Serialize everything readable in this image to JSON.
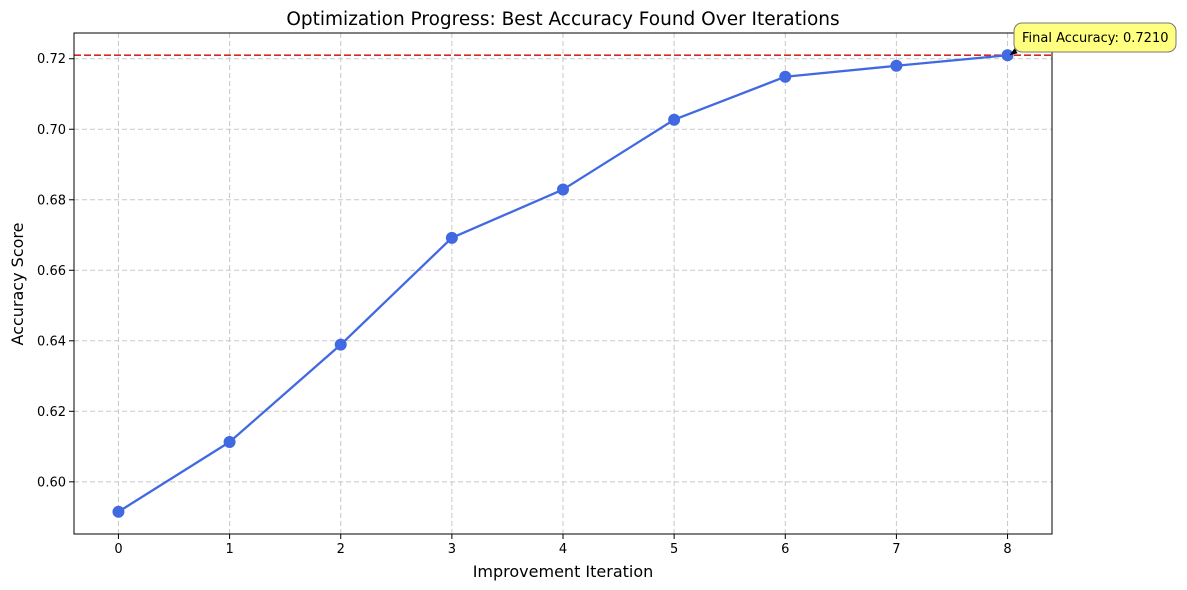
{
  "chart_data": {
    "type": "line",
    "title": "Optimization Progress: Best Accuracy Found Over Iterations",
    "xlabel": "Improvement Iteration",
    "ylabel": "Accuracy Score",
    "x": [
      0,
      1,
      2,
      3,
      4,
      5,
      6,
      7,
      8
    ],
    "series": [
      {
        "values": [
          0.5915,
          0.6113,
          0.6389,
          0.6692,
          0.6829,
          0.7027,
          0.7149,
          0.718,
          0.721
        ],
        "color": "#4169e1"
      }
    ],
    "xticks": [
      0,
      1,
      2,
      3,
      4,
      5,
      6,
      7,
      8
    ],
    "yticks": [
      0.6,
      0.62,
      0.64,
      0.66,
      0.68,
      0.7,
      0.72
    ],
    "xlim": [
      -0.4,
      8.4
    ],
    "ylim": [
      0.5852,
      0.7273
    ],
    "grid": true,
    "reference_line": {
      "y": 0.721,
      "color": "#d62728",
      "style": "dashed"
    },
    "annotation": {
      "text": "Final Accuracy: 0.7210",
      "x": 8,
      "y": 0.721,
      "box_color": "#ffff80"
    }
  }
}
